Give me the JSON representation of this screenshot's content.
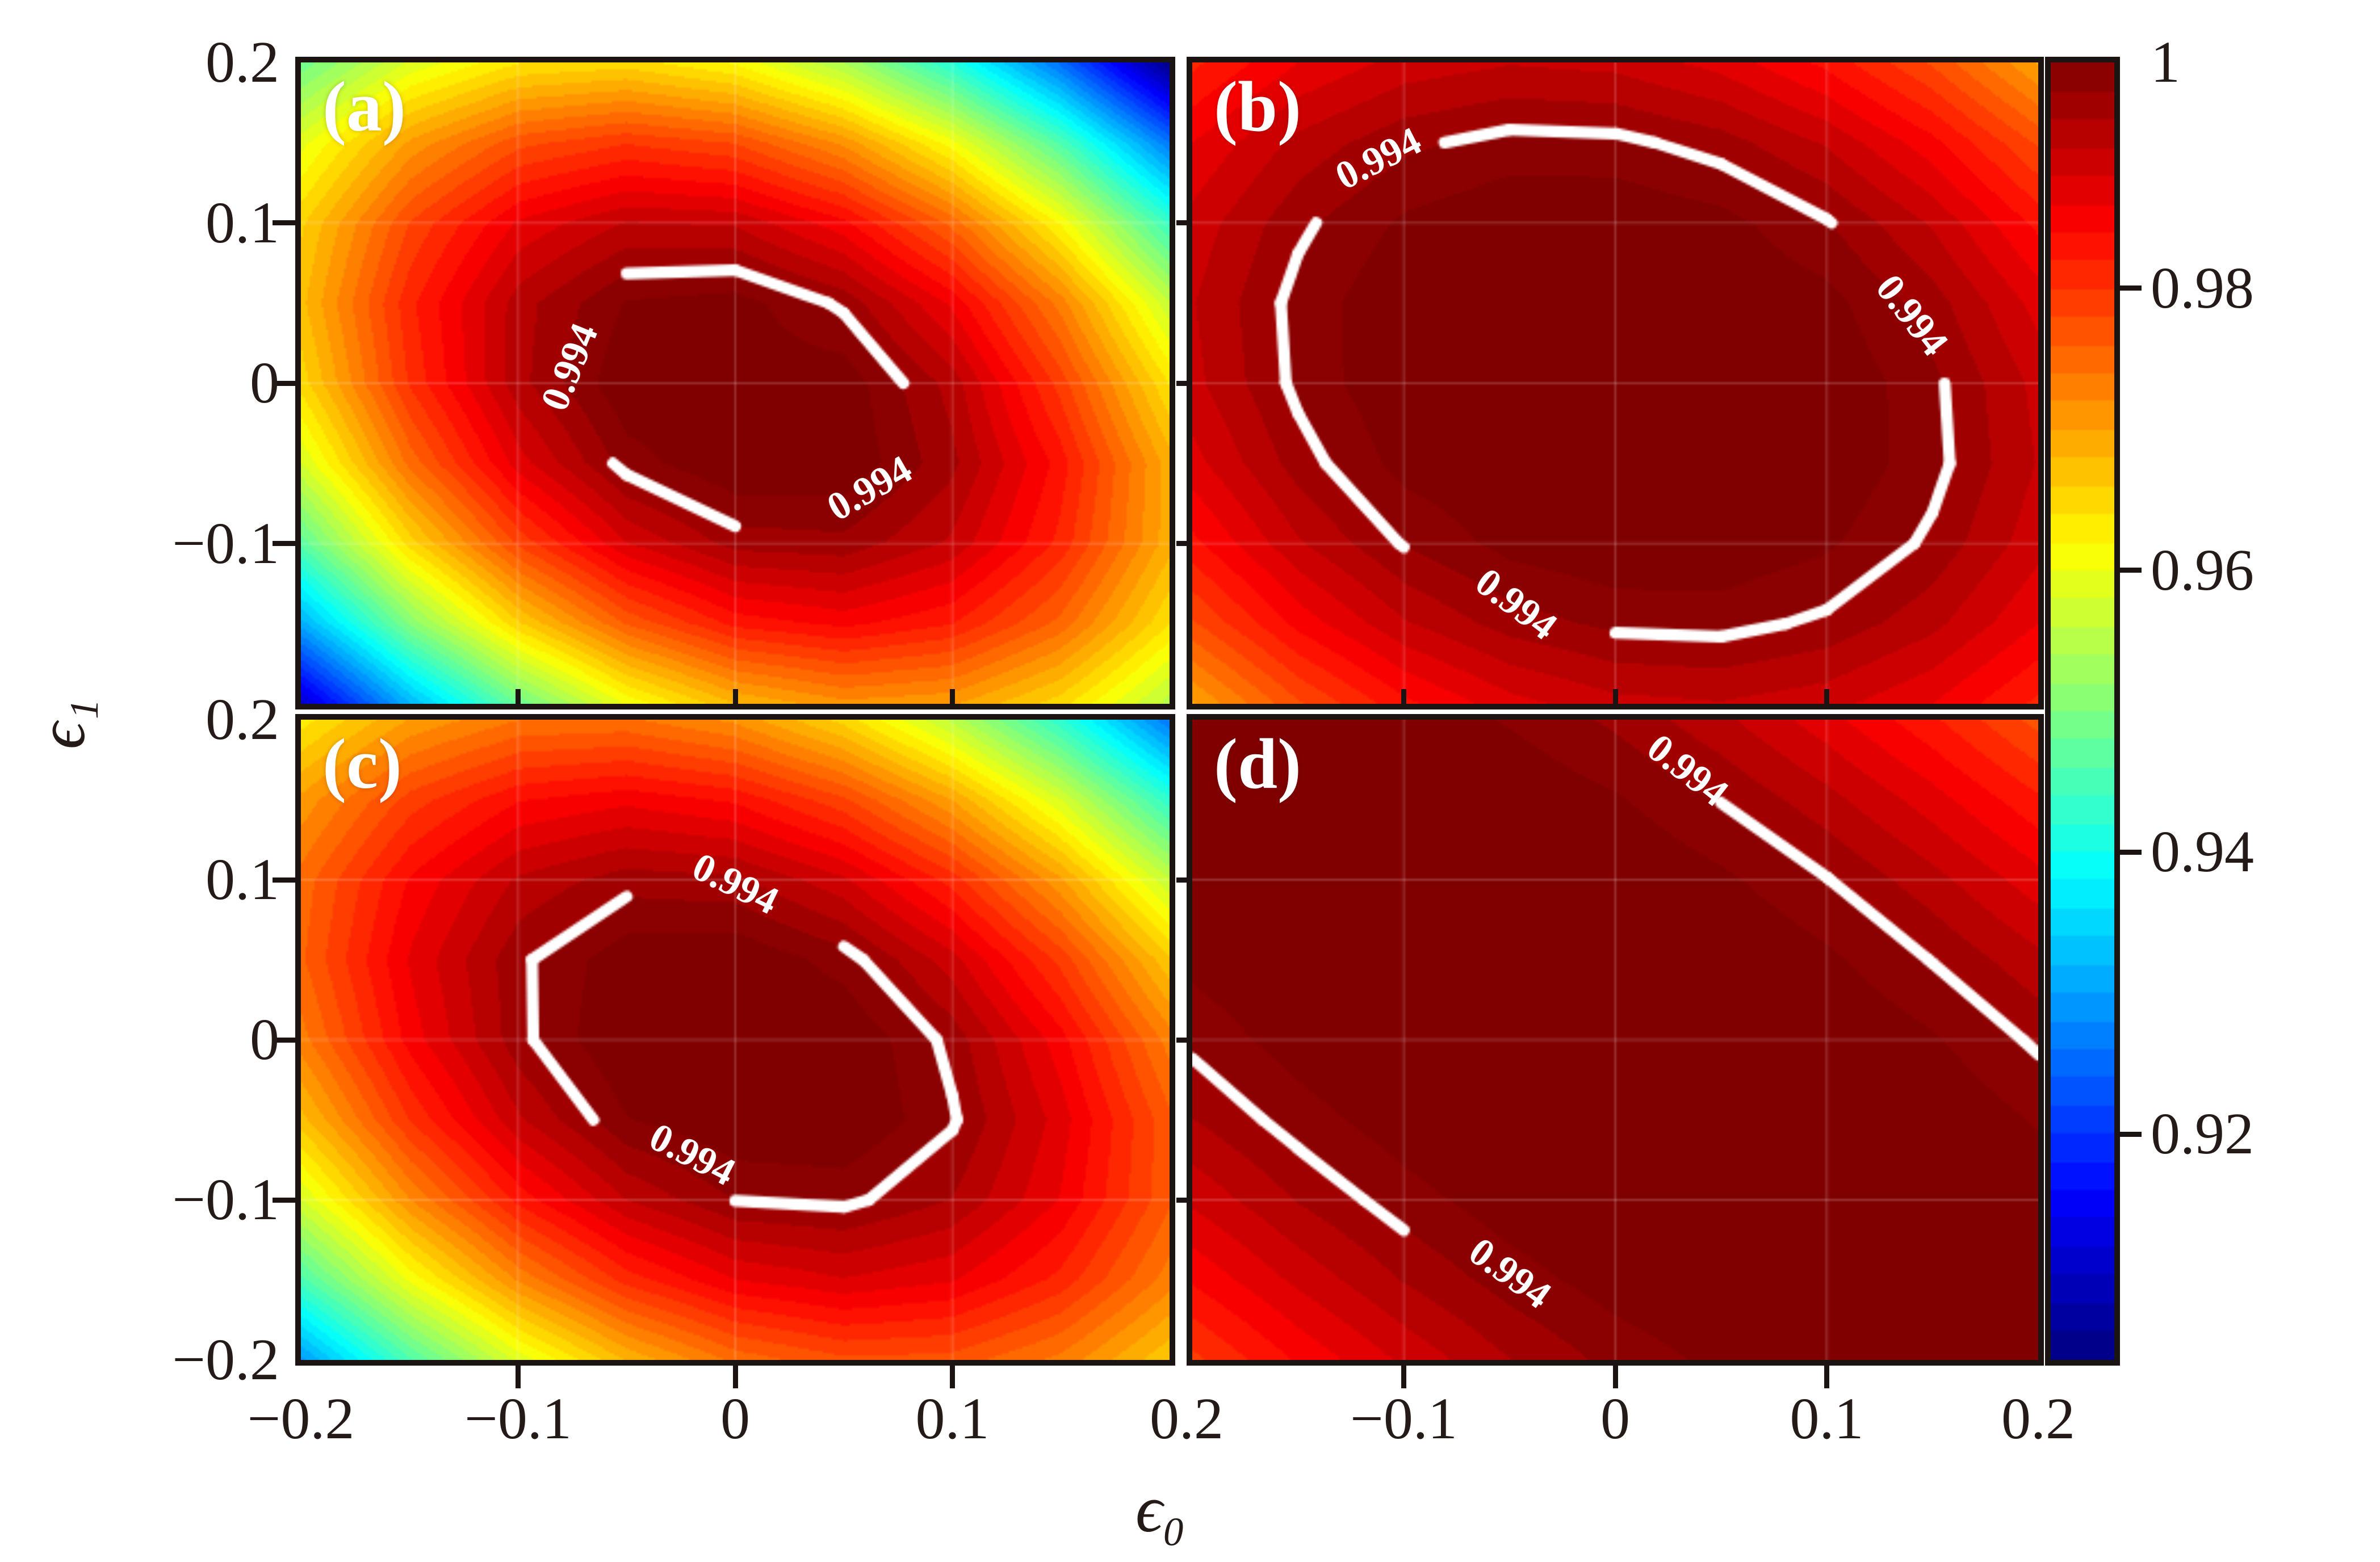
{
  "figure": {
    "background": "#ffffff",
    "frame_color": "#1c1412",
    "contour_line_color": "#ffffff",
    "grid_line_color": "rgba(255,255,255,0.28)"
  },
  "chart_data": {
    "type": "heatmap",
    "title": "",
    "xlabel": "ϵ₀",
    "ylabel": "ϵ₁",
    "xlim": [
      -0.2,
      0.2
    ],
    "ylim": [
      -0.2,
      0.2
    ],
    "colormap": "jet",
    "vmin": 0.904,
    "vmax": 0.996,
    "level_step": 0.002,
    "x": [
      -0.2,
      -0.15,
      -0.1,
      -0.05,
      0,
      0.05,
      0.1,
      0.15,
      0.2
    ],
    "y": [
      0.2,
      0.15,
      0.1,
      0.05,
      0,
      -0.05,
      -0.1,
      -0.15,
      -0.2
    ],
    "x_tick_labels": [
      "−0.2",
      "−0.1",
      "0",
      "0.1",
      "0.2",
      "−0.1",
      "0",
      "0.1",
      "0.2"
    ],
    "y_tick_labels": [
      "0.2",
      "0.1",
      "0",
      "−0.1",
      "0.2",
      "0.1",
      "0",
      "−0.1",
      "−0.2"
    ],
    "colorbar_ticks": [
      {
        "label": "1",
        "value": 1.0
      },
      {
        "label": "0.98",
        "value": 0.98
      },
      {
        "label": "0.96",
        "value": 0.96
      },
      {
        "label": "0.94",
        "value": 0.94
      },
      {
        "label": "0.92",
        "value": 0.92
      }
    ],
    "panels": [
      {
        "label": "(a)",
        "contour_level": 0.994,
        "contour_labels": [
          {
            "text": "0.994",
            "x": -0.076,
            "y": 0.01,
            "rot": -68
          },
          {
            "text": "0.994",
            "x": 0.062,
            "y": -0.066,
            "rot": -30
          }
        ],
        "z": [
          [
            0.9488,
            0.9586,
            0.964,
            0.9651,
            0.9618,
            0.9541,
            0.942,
            0.9256,
            0.9048
          ],
          [
            0.9594,
            0.9706,
            0.9774,
            0.9799,
            0.978,
            0.9716,
            0.961,
            0.9459,
            0.9265
          ],
          [
            0.9657,
            0.9782,
            0.9864,
            0.9902,
            0.9897,
            0.9847,
            0.9754,
            0.9618,
            0.9437
          ],
          [
            0.9675,
            0.9815,
            0.9911,
            0.9962,
            0.997,
            0.9935,
            0.9856,
            0.9732,
            0.9566
          ],
          [
            0.965,
            0.9804,
            0.9913,
            0.9978,
            0.9972,
            0.9974,
            0.9912,
            0.9792,
            0.964
          ],
          [
            0.9581,
            0.9748,
            0.9871,
            0.995,
            0.998,
            0.9978,
            0.9926,
            0.9831,
            0.9691
          ],
          [
            0.9469,
            0.965,
            0.9786,
            0.988,
            0.9929,
            0.9934,
            0.9896,
            0.9814,
            0.9689
          ],
          [
            0.9313,
            0.9507,
            0.9658,
            0.9764,
            0.9828,
            0.9847,
            0.9822,
            0.9754,
            0.9642
          ],
          [
            0.9112,
            0.9321,
            0.9485,
            0.9606,
            0.9682,
            0.9715,
            0.9705,
            0.965,
            0.9552
          ]
        ]
      },
      {
        "label": "(b)",
        "contour_level": 0.994,
        "contour_labels": [
          {
            "text": "0.994",
            "x": -0.112,
            "y": 0.14,
            "rot": -27
          },
          {
            "text": "0.994",
            "x": 0.14,
            "y": 0.042,
            "rot": 52
          },
          {
            "text": "0.994",
            "x": -0.047,
            "y": -0.138,
            "rot": 37
          }
        ],
        "z": [
          [
            0.9816,
            0.9861,
            0.9888,
            0.9899,
            0.9894,
            0.9873,
            0.9835,
            0.9778,
            0.97
          ],
          [
            0.9861,
            0.9907,
            0.9935,
            0.9948,
            0.9946,
            0.993,
            0.9898,
            0.9848,
            0.9778
          ],
          [
            0.9888,
            0.9935,
            0.9964,
            0.9978,
            0.9979,
            0.9968,
            0.9942,
            0.9898,
            0.9835
          ],
          [
            0.9899,
            0.9948,
            0.9978,
            0.9984,
            0.998,
            0.9979,
            0.9968,
            0.993,
            0.9873
          ],
          [
            0.9894,
            0.9946,
            0.9979,
            0.998,
            0.9983,
            0.998,
            0.9979,
            0.9946,
            0.9894
          ],
          [
            0.9873,
            0.993,
            0.9968,
            0.9979,
            0.998,
            0.9984,
            0.9978,
            0.9948,
            0.9899
          ],
          [
            0.9835,
            0.9898,
            0.9942,
            0.9968,
            0.9979,
            0.9978,
            0.9964,
            0.9935,
            0.9888
          ],
          [
            0.9778,
            0.9848,
            0.9898,
            0.993,
            0.9946,
            0.9948,
            0.9935,
            0.9907,
            0.9861
          ],
          [
            0.97,
            0.9778,
            0.9835,
            0.9873,
            0.9894,
            0.9899,
            0.9888,
            0.9861,
            0.9816
          ]
        ]
      },
      {
        "label": "(c)",
        "contour_level": 0.994,
        "contour_labels": [
          {
            "text": "0.994",
            "x": 0.0,
            "y": 0.097,
            "rot": 26
          },
          {
            "text": "0.994",
            "x": -0.02,
            "y": -0.072,
            "rot": 27
          }
        ],
        "z": [
          [
            0.9632,
            0.9703,
            0.9741,
            0.9745,
            0.9716,
            0.9653,
            0.9557,
            0.9428,
            0.9264
          ],
          [
            0.9707,
            0.979,
            0.9839,
            0.9855,
            0.9837,
            0.9786,
            0.9701,
            0.9583,
            0.9429
          ],
          [
            0.9749,
            0.9843,
            0.9904,
            0.9931,
            0.9925,
            0.9885,
            0.9812,
            0.9705,
            0.9565
          ],
          [
            0.9757,
            0.9863,
            0.9935,
            0.9974,
            0.9979,
            0.9951,
            0.9889,
            0.9794,
            0.9665
          ],
          [
            0.9732,
            0.9849,
            0.9933,
            0.9983,
            0.9975,
            0.9981,
            0.9933,
            0.9849,
            0.9732
          ],
          [
            0.9673,
            0.9802,
            0.9897,
            0.9959,
            0.998,
            0.9982,
            0.9943,
            0.9871,
            0.9766
          ],
          [
            0.9581,
            0.9721,
            0.9828,
            0.9901,
            0.9941,
            0.9946,
            0.992,
            0.9859,
            0.9765
          ],
          [
            0.9455,
            0.9607,
            0.9725,
            0.981,
            0.9861,
            0.9879,
            0.9863,
            0.9814,
            0.9731
          ],
          [
            0.9296,
            0.9459,
            0.9589,
            0.9684,
            0.9748,
            0.9777,
            0.9773,
            0.9735,
            0.9664
          ]
        ]
      },
      {
        "label": "(d)",
        "contour_level": 0.994,
        "contour_labels": [
          {
            "text": "0.994",
            "x": 0.034,
            "y": 0.168,
            "rot": 38
          },
          {
            "text": "0.994",
            "x": -0.05,
            "y": -0.146,
            "rot": 36
          }
        ],
        "z": [
          [
            0.9981,
            0.998,
            0.9973,
            0.9958,
            0.9936,
            0.9906,
            0.9869,
            0.9825,
            0.9773
          ],
          [
            0.9983,
            0.9989,
            0.9988,
            0.9979,
            0.9963,
            0.9939,
            0.9908,
            0.987,
            0.9825
          ],
          [
            0.9978,
            0.999,
            0.9992,
            0.9992,
            0.9982,
            0.9965,
            0.9941,
            0.9908,
            0.9869
          ],
          [
            0.9966,
            0.9984,
            0.9993,
            0.9994,
            0.9992,
            0.9984,
            0.9965,
            0.9939,
            0.9906
          ],
          [
            0.9946,
            0.9971,
            0.9988,
            0.9993,
            0.9994,
            0.9991,
            0.9982,
            0.9963,
            0.9936
          ],
          [
            0.992,
            0.995,
            0.9973,
            0.9989,
            0.9993,
            0.9992,
            0.9992,
            0.9979,
            0.9958
          ],
          [
            0.9885,
            0.9922,
            0.9951,
            0.9973,
            0.9988,
            0.9991,
            0.999,
            0.9987,
            0.9973
          ],
          [
            0.9844,
            0.9886,
            0.9922,
            0.995,
            0.9971,
            0.9984,
            0.999,
            0.9989,
            0.998
          ],
          [
            0.9795,
            0.9844,
            0.9885,
            0.992,
            0.9947,
            0.9966,
            0.9978,
            0.9983,
            0.9981
          ]
        ]
      }
    ]
  }
}
